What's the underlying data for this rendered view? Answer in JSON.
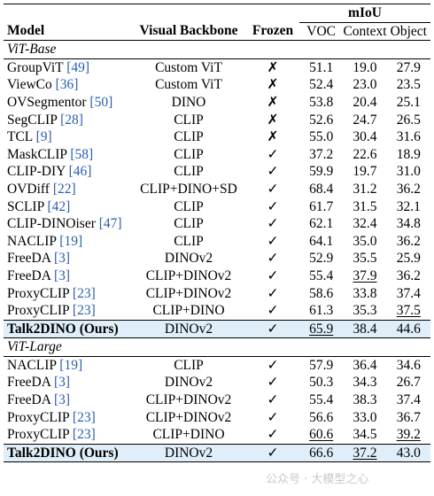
{
  "header": {
    "metric_group": "mIoU",
    "columns": [
      "Model",
      "Visual Backbone",
      "Frozen",
      "VOC",
      "Context",
      "Object"
    ]
  },
  "groups": [
    {
      "name": "ViT-Base",
      "rows": [
        {
          "name": "GroupViT",
          "ref": "[49]",
          "backbone": "Custom ViT",
          "frozen": "✗",
          "voc": "51.1",
          "ctx": "19.0",
          "obj": "27.9"
        },
        {
          "name": "ViewCo",
          "ref": "[36]",
          "backbone": "Custom ViT",
          "frozen": "✗",
          "voc": "52.4",
          "ctx": "23.0",
          "obj": "23.5"
        },
        {
          "name": "OVSegmentor",
          "ref": "[50]",
          "backbone": "DINO",
          "frozen": "✗",
          "voc": "53.8",
          "ctx": "20.4",
          "obj": "25.1"
        },
        {
          "name": "SegCLIP",
          "ref": "[28]",
          "backbone": "CLIP",
          "frozen": "✗",
          "voc": "52.6",
          "ctx": "24.7",
          "obj": "26.5"
        },
        {
          "name": "TCL",
          "ref": "[9]",
          "backbone": "CLIP",
          "frozen": "✗",
          "voc": "55.0",
          "ctx": "30.4",
          "obj": "31.6"
        },
        {
          "name": "MaskCLIP",
          "ref": "[58]",
          "backbone": "CLIP",
          "frozen": "✓",
          "voc": "37.2",
          "ctx": "22.6",
          "obj": "18.9"
        },
        {
          "name": "CLIP-DIY",
          "ref": "[46]",
          "backbone": "CLIP",
          "frozen": "✓",
          "voc": "59.9",
          "ctx": "19.7",
          "obj": "31.0"
        },
        {
          "name": "OVDiff",
          "ref": "[22]",
          "backbone": "CLIP+DINO+SD",
          "frozen": "✓",
          "voc": "68.4",
          "ctx": "31.2",
          "obj": "36.2"
        },
        {
          "name": "SCLIP",
          "ref": "[42]",
          "backbone": "CLIP",
          "frozen": "✓",
          "voc": "61.7",
          "ctx": "31.5",
          "obj": "32.1"
        },
        {
          "name": "CLIP-DINOiser",
          "ref": "[47]",
          "backbone": "CLIP",
          "frozen": "✓",
          "voc": "62.1",
          "ctx": "32.4",
          "obj": "34.8"
        },
        {
          "name": "NACLIP",
          "ref": "[19]",
          "backbone": "CLIP",
          "frozen": "✓",
          "voc": "64.1",
          "ctx": "35.0",
          "obj": "36.2"
        },
        {
          "name": "FreeDA",
          "ref": "[3]",
          "backbone": "DINOv2",
          "frozen": "✓",
          "voc": "52.9",
          "ctx": "35.5",
          "obj": "25.9"
        },
        {
          "name": "FreeDA",
          "ref": "[3]",
          "backbone": "CLIP+DINOv2",
          "frozen": "✓",
          "voc": "55.4",
          "ctx": "37.9",
          "obj": "36.2"
        },
        {
          "name": "ProxyCLIP",
          "ref": "[23]",
          "backbone": "CLIP+DINOv2",
          "frozen": "✓",
          "voc": "58.6",
          "ctx": "33.8",
          "obj": "37.4"
        },
        {
          "name": "ProxyCLIP",
          "ref": "[23]",
          "backbone": "CLIP+DINO",
          "frozen": "✓",
          "voc": "61.3",
          "ctx": "35.3",
          "obj": "37.5"
        },
        {
          "name": "Talk2DINO (Ours)",
          "ref": "",
          "backbone": "DINOv2",
          "frozen": "✓",
          "voc": "65.9",
          "ctx": "38.4",
          "obj": "44.6"
        }
      ]
    },
    {
      "name": "ViT-Large",
      "rows": [
        {
          "name": "NACLIP",
          "ref": "[19]",
          "backbone": "CLIP",
          "frozen": "✓",
          "voc": "57.9",
          "ctx": "36.4",
          "obj": "34.6"
        },
        {
          "name": "FreeDA",
          "ref": "[3]",
          "backbone": "DINOv2",
          "frozen": "✓",
          "voc": "50.3",
          "ctx": "34.3",
          "obj": "26.7"
        },
        {
          "name": "FreeDA",
          "ref": "[3]",
          "backbone": "CLIP+DINOv2",
          "frozen": "✓",
          "voc": "55.4",
          "ctx": "38.3",
          "obj": "37.4"
        },
        {
          "name": "ProxyCLIP",
          "ref": "[23]",
          "backbone": "CLIP+DINOv2",
          "frozen": "✓",
          "voc": "56.6",
          "ctx": "33.0",
          "obj": "36.7"
        },
        {
          "name": "ProxyCLIP",
          "ref": "[23]",
          "backbone": "CLIP+DINO",
          "frozen": "✓",
          "voc": "60.6",
          "ctx": "34.5",
          "obj": "39.2"
        },
        {
          "name": "Talk2DINO (Ours)",
          "ref": "",
          "backbone": "DINOv2",
          "frozen": "✓",
          "voc": "66.6",
          "ctx": "37.2",
          "obj": "43.0"
        }
      ]
    }
  ],
  "watermark": "公众号 · 大模型之心"
}
